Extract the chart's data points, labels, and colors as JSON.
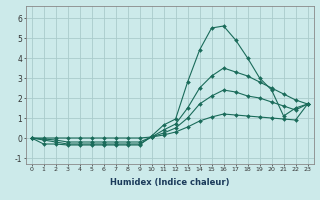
{
  "xlabel": "Humidex (Indice chaleur)",
  "background_color": "#cceaea",
  "grid_color": "#aacccc",
  "line_color": "#1a6b5a",
  "xlim": [
    -0.5,
    23.5
  ],
  "ylim": [
    -1.3,
    6.6
  ],
  "xticks": [
    0,
    1,
    2,
    3,
    4,
    5,
    6,
    7,
    8,
    9,
    10,
    11,
    12,
    13,
    14,
    15,
    16,
    17,
    18,
    19,
    20,
    21,
    22,
    23
  ],
  "yticks": [
    -1,
    0,
    1,
    2,
    3,
    4,
    5,
    6
  ],
  "series": [
    [
      0.0,
      -0.3,
      -0.3,
      -0.35,
      -0.35,
      -0.35,
      -0.35,
      -0.35,
      -0.35,
      -0.35,
      0.1,
      0.65,
      0.95,
      2.8,
      4.4,
      5.5,
      5.6,
      4.9,
      4.0,
      3.0,
      2.4,
      1.1,
      1.5,
      1.7
    ],
    [
      0.0,
      -0.1,
      -0.2,
      -0.3,
      -0.3,
      -0.3,
      -0.3,
      -0.3,
      -0.3,
      -0.3,
      0.05,
      0.4,
      0.7,
      1.5,
      2.5,
      3.1,
      3.5,
      3.3,
      3.1,
      2.8,
      2.5,
      2.2,
      1.9,
      1.7
    ],
    [
      0.0,
      -0.05,
      -0.1,
      -0.2,
      -0.2,
      -0.2,
      -0.2,
      -0.2,
      -0.2,
      -0.2,
      0.05,
      0.25,
      0.5,
      1.0,
      1.7,
      2.1,
      2.4,
      2.3,
      2.1,
      2.0,
      1.8,
      1.6,
      1.4,
      1.7
    ],
    [
      0.0,
      0.0,
      0.0,
      0.0,
      0.0,
      0.0,
      0.0,
      0.0,
      0.0,
      0.0,
      0.05,
      0.15,
      0.3,
      0.55,
      0.85,
      1.05,
      1.2,
      1.15,
      1.1,
      1.05,
      1.0,
      0.95,
      0.9,
      1.7
    ]
  ]
}
